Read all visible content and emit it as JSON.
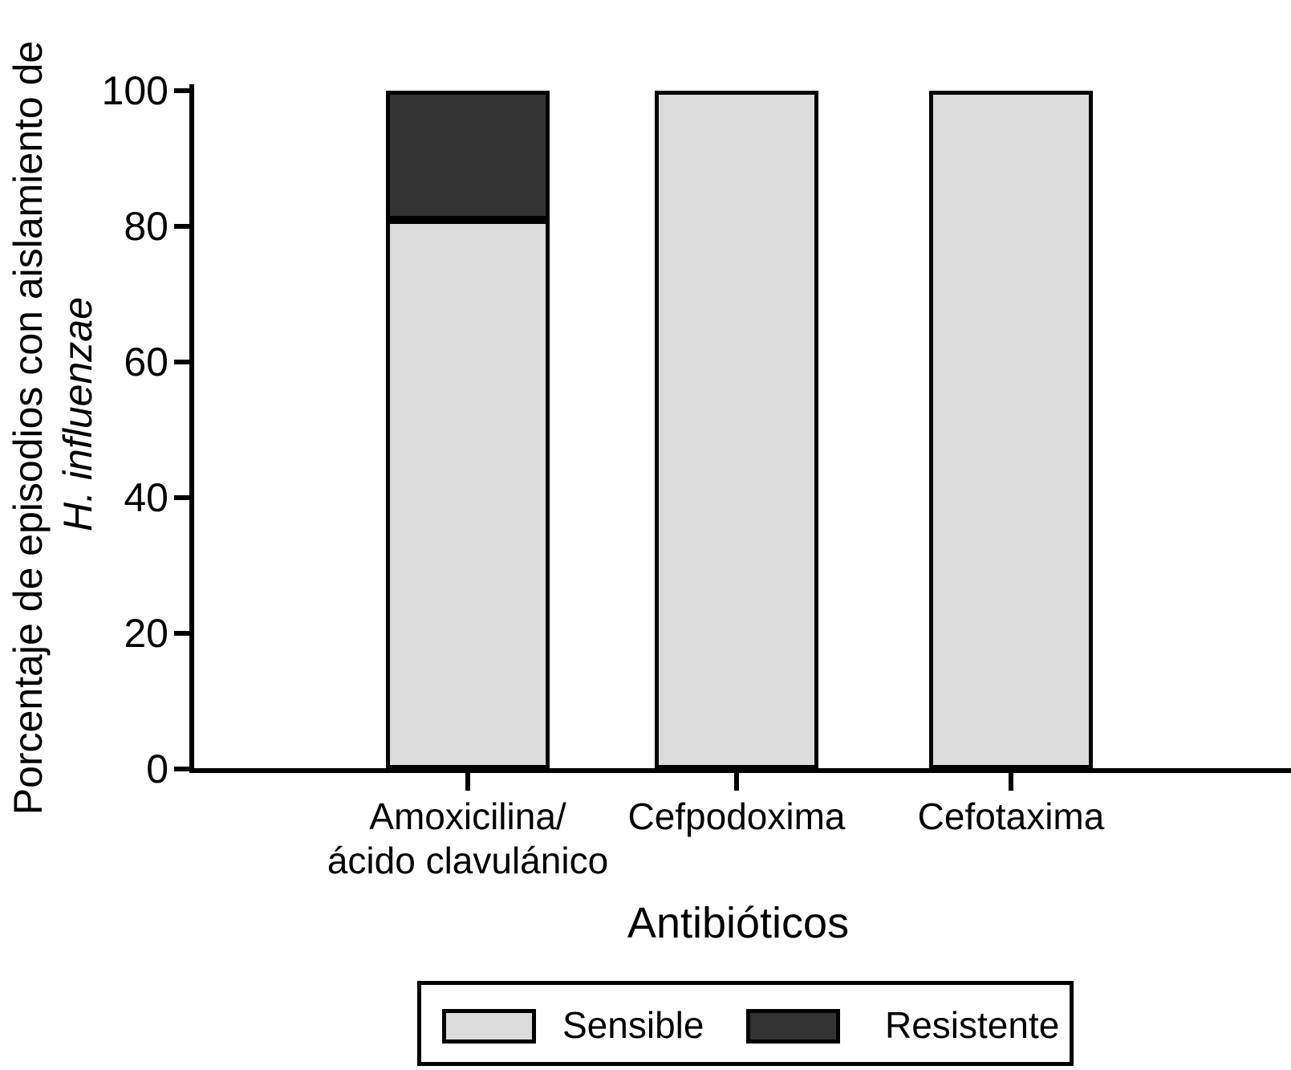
{
  "chart_data": {
    "type": "bar",
    "stacked": true,
    "title": "",
    "xlabel": "Antibióticos",
    "ylabel_line1": "Porcentaje de episodios con aislamiento de",
    "ylabel_line2": "H. influenzae",
    "categories": [
      [
        "Amoxicilina/",
        "ácido clavulánico"
      ],
      [
        "Cefpodoxima"
      ],
      [
        "Cefotaxima"
      ]
    ],
    "series": [
      {
        "name": "Sensible",
        "color": "#dcdcdc",
        "values": [
          81,
          100,
          100
        ]
      },
      {
        "name": "Resistente",
        "color": "#333333",
        "values": [
          19,
          0,
          0
        ]
      }
    ],
    "yticks": [
      "0",
      "20",
      "40",
      "60",
      "80",
      "100"
    ],
    "ytick_values": [
      0,
      20,
      40,
      60,
      80,
      100
    ],
    "ylim": [
      0,
      100
    ],
    "grid": false,
    "legend_position": "bottom-box",
    "line_color": "#000000",
    "background_color": "#ffffff"
  },
  "legend": {
    "items": [
      {
        "label": "Sensible",
        "color": "#dcdcdc"
      },
      {
        "label": "Resistente",
        "color": "#333333"
      }
    ]
  }
}
